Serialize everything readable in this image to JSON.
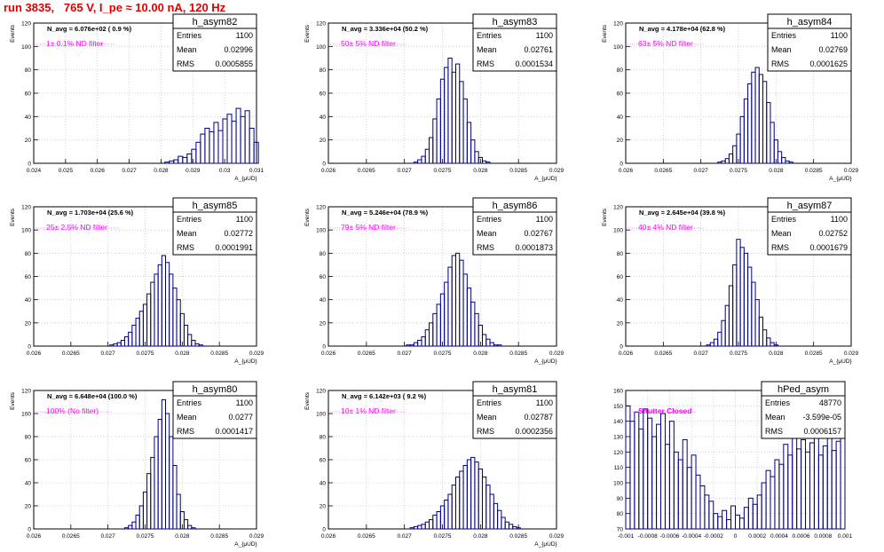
{
  "header": {
    "title": "run 3835,   765 V, I_pe ≈ 10.00 nA, 120 Hz"
  },
  "colors": {
    "line": "#000080",
    "title": "#e00000",
    "magenta": "#ff00ff",
    "grid": "#c8c8c8"
  },
  "chart_data": [
    {
      "type": "histogram",
      "name": "h_asym82",
      "n_avg": "N_avg = 6.076e+02 ( 0.9 %)",
      "filter": "1± 0.1% ND filter",
      "stats": {
        "Entries": "1100",
        "Mean": "0.02996",
        "RMS": "0.0005855"
      },
      "ylabel": "Events",
      "xlabel": "A_{μUD}",
      "xlim": [
        0.024,
        0.031
      ],
      "ylim": [
        0,
        120
      ],
      "grid": true,
      "xticks": [
        0.024,
        0.025,
        0.026,
        0.027,
        0.028,
        0.029,
        0.03,
        0.031
      ],
      "xticklabels": [
        "0.024",
        "0.025",
        "0.026",
        "0.027",
        "0.028",
        "0.029",
        "0.03",
        "0.031"
      ],
      "yticks": [
        0,
        20,
        40,
        60,
        80,
        100,
        120
      ],
      "yticklabels": [
        "0",
        "20",
        "40",
        "60",
        "80",
        "100",
        "120"
      ],
      "x": [
        0.02819,
        0.02833,
        0.02847,
        0.02861,
        0.02875,
        0.02889,
        0.02903,
        0.02917,
        0.02931,
        0.02945,
        0.02959,
        0.02973,
        0.02987,
        0.03001,
        0.03015,
        0.03029,
        0.03043,
        0.03057,
        0.03071,
        0.03085,
        0.03099
      ],
      "values": [
        1,
        2,
        3,
        6,
        5,
        8,
        12,
        18,
        25,
        30,
        27,
        35,
        28,
        38,
        42,
        36,
        47,
        40,
        45,
        30,
        18
      ]
    },
    {
      "type": "histogram",
      "name": "h_asym83",
      "n_avg": "N_avg = 3.336e+04 (50.2 %)",
      "filter": "50± 5% ND filter",
      "stats": {
        "Entries": "1100",
        "Mean": "0.02761",
        "RMS": "0.0001534"
      },
      "ylabel": "Events",
      "xlabel": "A_{μUD}",
      "xlim": [
        0.026,
        0.029
      ],
      "ylim": [
        0,
        120
      ],
      "grid": true,
      "xticks": [
        0.026,
        0.0265,
        0.027,
        0.0275,
        0.028,
        0.0285,
        0.029
      ],
      "xticklabels": [
        "0.026",
        "0.0265",
        "0.027",
        "0.0275",
        "0.028",
        "0.0285",
        "0.029"
      ],
      "yticks": [
        0,
        20,
        40,
        60,
        80,
        100,
        120
      ],
      "yticklabels": [
        "0",
        "20",
        "40",
        "60",
        "80",
        "100",
        "120"
      ],
      "x": [
        0.02715,
        0.0272,
        0.02725,
        0.0273,
        0.02735,
        0.0274,
        0.02745,
        0.0275,
        0.02755,
        0.0276,
        0.02765,
        0.0277,
        0.02775,
        0.0278,
        0.02785,
        0.0279,
        0.02795,
        0.028,
        0.02805,
        0.0281
      ],
      "values": [
        1,
        3,
        6,
        12,
        22,
        38,
        55,
        72,
        82,
        90,
        78,
        85,
        70,
        55,
        35,
        20,
        10,
        5,
        2,
        1
      ]
    },
    {
      "type": "histogram",
      "name": "h_asym84",
      "n_avg": "N_avg = 4.178e+04 (62.8 %)",
      "filter": "63± 5% ND filter",
      "stats": {
        "Entries": "1100",
        "Mean": "0.02769",
        "RMS": "0.0001625"
      },
      "ylabel": "Events",
      "xlabel": "A_{μUD}",
      "xlim": [
        0.026,
        0.029
      ],
      "ylim": [
        0,
        120
      ],
      "grid": true,
      "xticks": [
        0.026,
        0.0265,
        0.027,
        0.0275,
        0.028,
        0.0285,
        0.029
      ],
      "xticklabels": [
        "0.026",
        "0.0265",
        "0.027",
        "0.0275",
        "0.028",
        "0.0285",
        "0.029"
      ],
      "yticks": [
        0,
        20,
        40,
        60,
        80,
        100,
        120
      ],
      "yticklabels": [
        "0",
        "20",
        "40",
        "60",
        "80",
        "100",
        "120"
      ],
      "x": [
        0.02725,
        0.0273,
        0.02735,
        0.0274,
        0.02745,
        0.0275,
        0.02755,
        0.0276,
        0.02765,
        0.0277,
        0.02775,
        0.0278,
        0.02785,
        0.0279,
        0.02795,
        0.028,
        0.02805,
        0.0281,
        0.02815,
        0.0282
      ],
      "values": [
        1,
        2,
        4,
        8,
        15,
        25,
        40,
        55,
        68,
        78,
        82,
        76,
        70,
        52,
        35,
        20,
        10,
        5,
        2,
        1
      ]
    },
    {
      "type": "histogram",
      "name": "h_asym85",
      "n_avg": "N_avg = 1.703e+04 (25.6 %)",
      "filter": "25± 2.5% ND filter",
      "stats": {
        "Entries": "1100",
        "Mean": "0.02772",
        "RMS": "0.0001991"
      },
      "ylabel": "Events",
      "xlabel": "A_{μUD}",
      "xlim": [
        0.026,
        0.029
      ],
      "ylim": [
        0,
        120
      ],
      "grid": true,
      "xticks": [
        0.026,
        0.0265,
        0.027,
        0.0275,
        0.028,
        0.0285,
        0.029
      ],
      "xticklabels": [
        "0.026",
        "0.0265",
        "0.027",
        "0.0275",
        "0.028",
        "0.0285",
        "0.029"
      ],
      "yticks": [
        0,
        20,
        40,
        60,
        80,
        100,
        120
      ],
      "yticklabels": [
        "0",
        "20",
        "40",
        "60",
        "80",
        "100",
        "120"
      ],
      "x": [
        0.02705,
        0.0271,
        0.02715,
        0.0272,
        0.02725,
        0.0273,
        0.02735,
        0.0274,
        0.02745,
        0.0275,
        0.02755,
        0.0276,
        0.02765,
        0.0277,
        0.02775,
        0.0278,
        0.02785,
        0.0279,
        0.02795,
        0.028,
        0.02805,
        0.0281,
        0.02815,
        0.0282,
        0.02825
      ],
      "values": [
        1,
        2,
        3,
        5,
        8,
        12,
        18,
        24,
        30,
        36,
        45,
        55,
        62,
        70,
        78,
        72,
        62,
        50,
        40,
        28,
        18,
        10,
        5,
        2,
        1
      ]
    },
    {
      "type": "histogram",
      "name": "h_asym86",
      "n_avg": "N_avg = 5.246e+04 (78.9 %)",
      "filter": "79± 5% ND filter",
      "stats": {
        "Entries": "1100",
        "Mean": "0.02767",
        "RMS": "0.0001873"
      },
      "ylabel": "Events",
      "xlabel": "A_{μUD}",
      "xlim": [
        0.026,
        0.029
      ],
      "ylim": [
        0,
        120
      ],
      "grid": true,
      "xticks": [
        0.026,
        0.0265,
        0.027,
        0.0275,
        0.028,
        0.0285,
        0.029
      ],
      "xticklabels": [
        "0.026",
        "0.0265",
        "0.027",
        "0.0275",
        "0.028",
        "0.0285",
        "0.029"
      ],
      "yticks": [
        0,
        20,
        40,
        60,
        80,
        100,
        120
      ],
      "yticklabels": [
        "0",
        "20",
        "40",
        "60",
        "80",
        "100",
        "120"
      ],
      "x": [
        0.02705,
        0.0271,
        0.02715,
        0.0272,
        0.02725,
        0.0273,
        0.02735,
        0.0274,
        0.02745,
        0.0275,
        0.02755,
        0.0276,
        0.02765,
        0.0277,
        0.02775,
        0.0278,
        0.02785,
        0.0279,
        0.02795,
        0.028,
        0.02805,
        0.0281,
        0.02815,
        0.0282,
        0.02825
      ],
      "values": [
        1,
        1,
        3,
        5,
        8,
        14,
        20,
        28,
        36,
        45,
        55,
        68,
        78,
        80,
        74,
        62,
        50,
        38,
        28,
        18,
        10,
        6,
        3,
        1,
        1
      ]
    },
    {
      "type": "histogram",
      "name": "h_asym87",
      "n_avg": "N_avg = 2.645e+04 (39.8 %)",
      "filter": "40± 4% ND filter",
      "stats": {
        "Entries": "1100",
        "Mean": "0.02752",
        "RMS": "0.0001679"
      },
      "ylabel": "Events",
      "xlabel": "A_{μUD}",
      "xlim": [
        0.026,
        0.029
      ],
      "ylim": [
        0,
        120
      ],
      "grid": true,
      "xticks": [
        0.026,
        0.0265,
        0.027,
        0.0275,
        0.028,
        0.0285,
        0.029
      ],
      "xticklabels": [
        "0.026",
        "0.0265",
        "0.027",
        "0.0275",
        "0.028",
        "0.0285",
        "0.029"
      ],
      "yticks": [
        0,
        20,
        40,
        60,
        80,
        100,
        120
      ],
      "yticklabels": [
        "0",
        "20",
        "40",
        "60",
        "80",
        "100",
        "120"
      ],
      "x": [
        0.0271,
        0.02715,
        0.0272,
        0.02725,
        0.0273,
        0.02735,
        0.0274,
        0.02745,
        0.0275,
        0.02755,
        0.0276,
        0.02765,
        0.0277,
        0.02775,
        0.0278,
        0.02785,
        0.0279,
        0.02795,
        0.028
      ],
      "values": [
        1,
        3,
        6,
        12,
        22,
        35,
        52,
        70,
        92,
        85,
        80,
        68,
        55,
        40,
        25,
        14,
        7,
        3,
        1
      ]
    },
    {
      "type": "histogram",
      "name": "h_asym80",
      "n_avg": "N_avg = 6.648e+04 (100.0 %)",
      "filter": "100% (No filter)",
      "stats": {
        "Entries": "1100",
        "Mean": "0.0277",
        "RMS": "0.0001417"
      },
      "ylabel": "Events",
      "xlabel": "A_{μUD}",
      "xlim": [
        0.026,
        0.029
      ],
      "ylim": [
        0,
        120
      ],
      "grid": true,
      "xticks": [
        0.026,
        0.0265,
        0.027,
        0.0275,
        0.028,
        0.0285,
        0.029
      ],
      "xticklabels": [
        "0.026",
        "0.0265",
        "0.027",
        "0.0275",
        "0.028",
        "0.0285",
        "0.029"
      ],
      "yticks": [
        0,
        20,
        40,
        60,
        80,
        100,
        120
      ],
      "yticklabels": [
        "0",
        "20",
        "40",
        "60",
        "80",
        "100",
        "120"
      ],
      "x": [
        0.02725,
        0.0273,
        0.02735,
        0.0274,
        0.02745,
        0.0275,
        0.02755,
        0.0276,
        0.02765,
        0.0277,
        0.02775,
        0.0278,
        0.02785,
        0.0279,
        0.02795,
        0.028,
        0.02805,
        0.0281,
        0.02815
      ],
      "values": [
        1,
        3,
        6,
        12,
        20,
        32,
        48,
        62,
        80,
        95,
        112,
        100,
        80,
        55,
        30,
        15,
        8,
        3,
        1
      ]
    },
    {
      "type": "histogram",
      "name": "h_asym81",
      "n_avg": "N_avg = 6.142e+03 ( 9.2 %)",
      "filter": "10± 1% ND filter",
      "stats": {
        "Entries": "1100",
        "Mean": "0.02787",
        "RMS": "0.0002356"
      },
      "ylabel": "Events",
      "xlabel": "A_{μUD}",
      "xlim": [
        0.026,
        0.029
      ],
      "ylim": [
        0,
        120
      ],
      "grid": true,
      "xticks": [
        0.026,
        0.0265,
        0.027,
        0.0275,
        0.028,
        0.0285,
        0.029
      ],
      "xticklabels": [
        "0.026",
        "0.0265",
        "0.027",
        "0.0275",
        "0.028",
        "0.0285",
        "0.029"
      ],
      "yticks": [
        0,
        20,
        40,
        60,
        80,
        100,
        120
      ],
      "yticklabels": [
        "0",
        "20",
        "40",
        "60",
        "80",
        "100",
        "120"
      ],
      "x": [
        0.0271,
        0.02715,
        0.0272,
        0.02725,
        0.0273,
        0.02735,
        0.0274,
        0.02745,
        0.0275,
        0.02755,
        0.0276,
        0.02765,
        0.0277,
        0.02775,
        0.0278,
        0.02785,
        0.0279,
        0.02795,
        0.028,
        0.02805,
        0.0281,
        0.02815,
        0.0282,
        0.02825,
        0.0283,
        0.02835,
        0.0284,
        0.02845,
        0.0285
      ],
      "values": [
        1,
        2,
        3,
        4,
        6,
        8,
        12,
        15,
        20,
        25,
        30,
        38,
        45,
        50,
        55,
        60,
        62,
        58,
        52,
        45,
        38,
        30,
        22,
        16,
        10,
        6,
        4,
        2,
        1
      ]
    },
    {
      "type": "histogram",
      "name": "hPed_asym",
      "n_avg": "",
      "filter": "Shutter Closed",
      "stats": {
        "Entries": "48770",
        "Mean": "-3.599e-05",
        "RMS": "0.0006157"
      },
      "ylabel": "",
      "xlabel": "",
      "xlim": [
        -0.001,
        0.001
      ],
      "ylim": [
        70,
        160
      ],
      "grid": true,
      "xticks": [
        -0.001,
        -0.0008,
        -0.0006,
        -0.0004,
        -0.0002,
        0,
        0.0002,
        0.0004,
        0.0006,
        0.0008,
        0.001
      ],
      "xticklabels": [
        "-0.001",
        "-0.0008",
        "-0.0006",
        "-0.0004",
        "-0.0002",
        "0",
        "0.0002",
        "0.0004",
        "0.0006",
        "0.0008",
        "0.001"
      ],
      "yticks": [
        70,
        80,
        90,
        100,
        110,
        120,
        130,
        140,
        150,
        160
      ],
      "yticklabels": [
        "70",
        "80",
        "90",
        "100",
        "110",
        "120",
        "130",
        "140",
        "150",
        "160"
      ],
      "x": [
        -0.00098,
        -0.00094,
        -0.0009,
        -0.00086,
        -0.00082,
        -0.00078,
        -0.00074,
        -0.0007,
        -0.00066,
        -0.00062,
        -0.00058,
        -0.00054,
        -0.0005,
        -0.00046,
        -0.00042,
        -0.00038,
        -0.00034,
        -0.0003,
        -0.00026,
        -0.00022,
        -0.00018,
        -0.00014,
        -0.0001,
        -6e-05,
        -2e-05,
        2e-05,
        6e-05,
        0.0001,
        0.00014,
        0.00018,
        0.00022,
        0.00026,
        0.0003,
        0.00034,
        0.00038,
        0.00042,
        0.00046,
        0.0005,
        0.00054,
        0.00058,
        0.00062,
        0.00066,
        0.0007,
        0.00074,
        0.00078,
        0.00082,
        0.00086,
        0.0009,
        0.00094,
        0.00098
      ],
      "values": [
        150,
        140,
        146,
        135,
        148,
        142,
        130,
        138,
        145,
        125,
        140,
        120,
        115,
        128,
        110,
        118,
        105,
        98,
        92,
        88,
        80,
        78,
        82,
        76,
        85,
        79,
        77,
        84,
        90,
        86,
        92,
        100,
        108,
        104,
        115,
        112,
        125,
        118,
        130,
        122,
        128,
        120,
        126,
        131,
        118,
        124,
        129,
        121,
        127,
        133
      ]
    }
  ]
}
